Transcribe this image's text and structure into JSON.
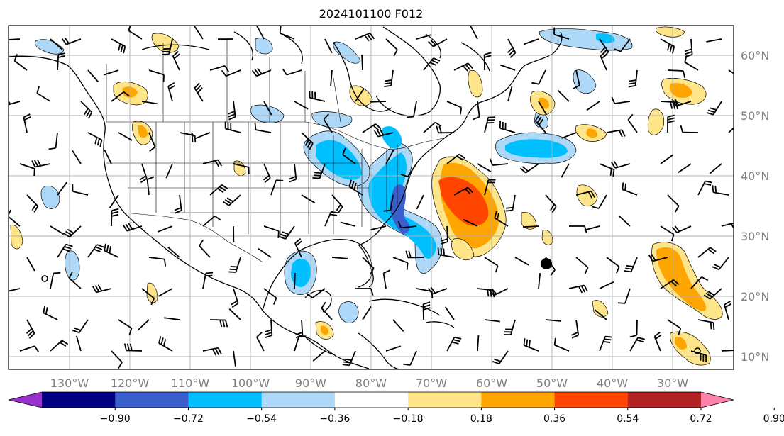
{
  "title": "2024101100 F012",
  "latitudes": [
    "60°N",
    "50°N",
    "40°N",
    "30°N",
    "20°N",
    "10°N"
  ],
  "longitudes": [
    "130°W",
    "120°W",
    "110°W",
    "100°W",
    "90°W",
    "80°W",
    "70°W",
    "60°W",
    "50°W",
    "40°W",
    "30°W"
  ],
  "colorbar": {
    "colors": [
      "#9932cc",
      "#000080",
      "#3a5fcd",
      "#00bfff",
      "#add8f7",
      "#ffffff",
      "#ffe58a",
      "#ffa500",
      "#ff4500",
      "#b22222",
      "#ff82ab"
    ],
    "levels": [
      "−0.90",
      "−0.72",
      "−0.54",
      "−0.36",
      "−0.18",
      "0.18",
      "0.36",
      "0.54",
      "0.72",
      "0.90"
    ]
  },
  "anomaly_regions": [
    {
      "name": "atlantic-positive-core",
      "level": 0.72,
      "lon": -64,
      "lat": 36
    },
    {
      "name": "us-east-coast-negative",
      "level": -0.72,
      "lon": -76,
      "lat": 34
    },
    {
      "name": "great-lakes-negative",
      "level": -0.54,
      "lon": -88,
      "lat": 44
    },
    {
      "name": "gulf-of-mexico-negative",
      "level": -0.54,
      "lon": -91,
      "lat": 25
    },
    {
      "name": "subtropical-atlantic-positive",
      "level": 0.54,
      "lon": -27,
      "lat": 25
    },
    {
      "name": "north-atlantic-negative",
      "level": -0.36,
      "lon": -54,
      "lat": 45
    }
  ]
}
